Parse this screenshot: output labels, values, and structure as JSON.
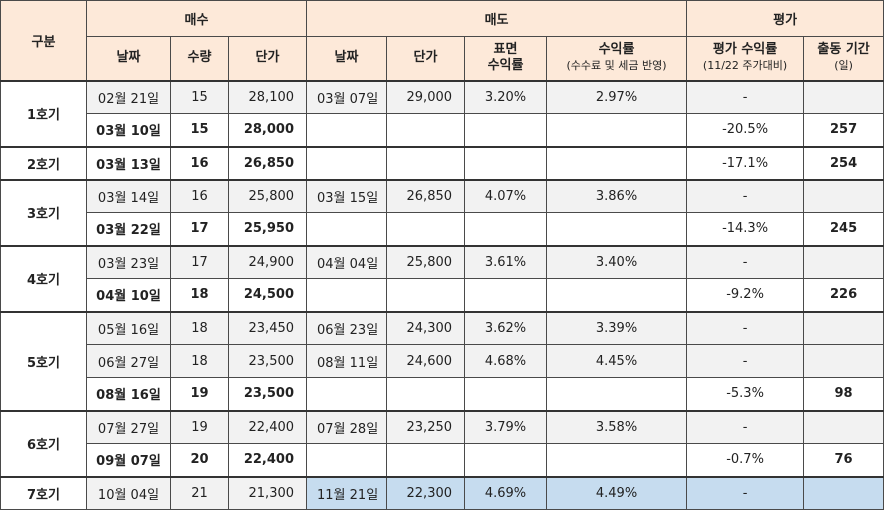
{
  "header": {
    "group_label": "구분",
    "buy_label": "매수",
    "sell_label": "매도",
    "eval_label": "평가",
    "buy_cols": [
      "날짜",
      "수량",
      "단가"
    ],
    "sell_cols": {
      "date": "날짜",
      "price": "단가",
      "surface_1": "표면",
      "surface_2": "수익률",
      "rate_1": "수익률",
      "rate_2": "(수수료 및 세금 반영)"
    },
    "eval_cols": {
      "rate_1": "평가 수익률",
      "rate_2": "(11/22 주가대비)",
      "period_1": "출동 기간",
      "period_2": "(일)"
    }
  },
  "groups": [
    {
      "label": "1호기",
      "rows": [
        {
          "buy_date": "02월 21일",
          "qty": "15",
          "buy_price": "28,100",
          "sell_date": "03월 07일",
          "sell_price": "29,000",
          "surface": "3.20%",
          "rate": "2.97%",
          "eval_rate": "-",
          "period": "",
          "bold": false
        },
        {
          "buy_date": "03월 10일",
          "qty": "15",
          "buy_price": "28,000",
          "sell_date": "",
          "sell_price": "",
          "surface": "",
          "rate": "",
          "eval_rate": "-20.5%",
          "period": "257",
          "bold": true
        }
      ]
    },
    {
      "label": "2호기",
      "rows": [
        {
          "buy_date": "03월 13일",
          "qty": "16",
          "buy_price": "26,850",
          "sell_date": "",
          "sell_price": "",
          "surface": "",
          "rate": "",
          "eval_rate": "-17.1%",
          "period": "254",
          "bold": true
        }
      ]
    },
    {
      "label": "3호기",
      "rows": [
        {
          "buy_date": "03월 14일",
          "qty": "16",
          "buy_price": "25,800",
          "sell_date": "03월 15일",
          "sell_price": "26,850",
          "surface": "4.07%",
          "rate": "3.86%",
          "eval_rate": "-",
          "period": "",
          "bold": false
        },
        {
          "buy_date": "03월 22일",
          "qty": "17",
          "buy_price": "25,950",
          "sell_date": "",
          "sell_price": "",
          "surface": "",
          "rate": "",
          "eval_rate": "-14.3%",
          "period": "245",
          "bold": true
        }
      ]
    },
    {
      "label": "4호기",
      "rows": [
        {
          "buy_date": "03월 23일",
          "qty": "17",
          "buy_price": "24,900",
          "sell_date": "04월 04일",
          "sell_price": "25,800",
          "surface": "3.61%",
          "rate": "3.40%",
          "eval_rate": "-",
          "period": "",
          "bold": false
        },
        {
          "buy_date": "04월 10일",
          "qty": "18",
          "buy_price": "24,500",
          "sell_date": "",
          "sell_price": "",
          "surface": "",
          "rate": "",
          "eval_rate": "-9.2%",
          "period": "226",
          "bold": true
        }
      ]
    },
    {
      "label": "5호기",
      "rows": [
        {
          "buy_date": "05월 16일",
          "qty": "18",
          "buy_price": "23,450",
          "sell_date": "06월 23일",
          "sell_price": "24,300",
          "surface": "3.62%",
          "rate": "3.39%",
          "eval_rate": "-",
          "period": "",
          "bold": false
        },
        {
          "buy_date": "06월 27일",
          "qty": "18",
          "buy_price": "23,500",
          "sell_date": "08월 11일",
          "sell_price": "24,600",
          "surface": "4.68%",
          "rate": "4.45%",
          "eval_rate": "-",
          "period": "",
          "bold": false
        },
        {
          "buy_date": "08월 16일",
          "qty": "19",
          "buy_price": "23,500",
          "sell_date": "",
          "sell_price": "",
          "surface": "",
          "rate": "",
          "eval_rate": "-5.3%",
          "period": "98",
          "bold": true
        }
      ]
    },
    {
      "label": "6호기",
      "rows": [
        {
          "buy_date": "07월 27일",
          "qty": "19",
          "buy_price": "22,400",
          "sell_date": "07월 28일",
          "sell_price": "23,250",
          "surface": "3.79%",
          "rate": "3.58%",
          "eval_rate": "-",
          "period": "",
          "bold": false
        },
        {
          "buy_date": "09월 07일",
          "qty": "20",
          "buy_price": "22,400",
          "sell_date": "",
          "sell_price": "",
          "surface": "",
          "rate": "",
          "eval_rate": "-0.7%",
          "period": "76",
          "bold": true
        }
      ]
    },
    {
      "label": "7호기",
      "rows": [
        {
          "buy_date": "10월 04일",
          "qty": "21",
          "buy_price": "21,300",
          "sell_date": "11월 21일",
          "sell_price": "22,300",
          "surface": "4.69%",
          "rate": "4.49%",
          "eval_rate": "-",
          "period": "",
          "bold": false,
          "highlight": true
        }
      ]
    }
  ],
  "colors": {
    "header_bg": "#fde9d9",
    "pending_row_bg": "#f2f2f2",
    "highlight_bg": "#c6dcef"
  }
}
